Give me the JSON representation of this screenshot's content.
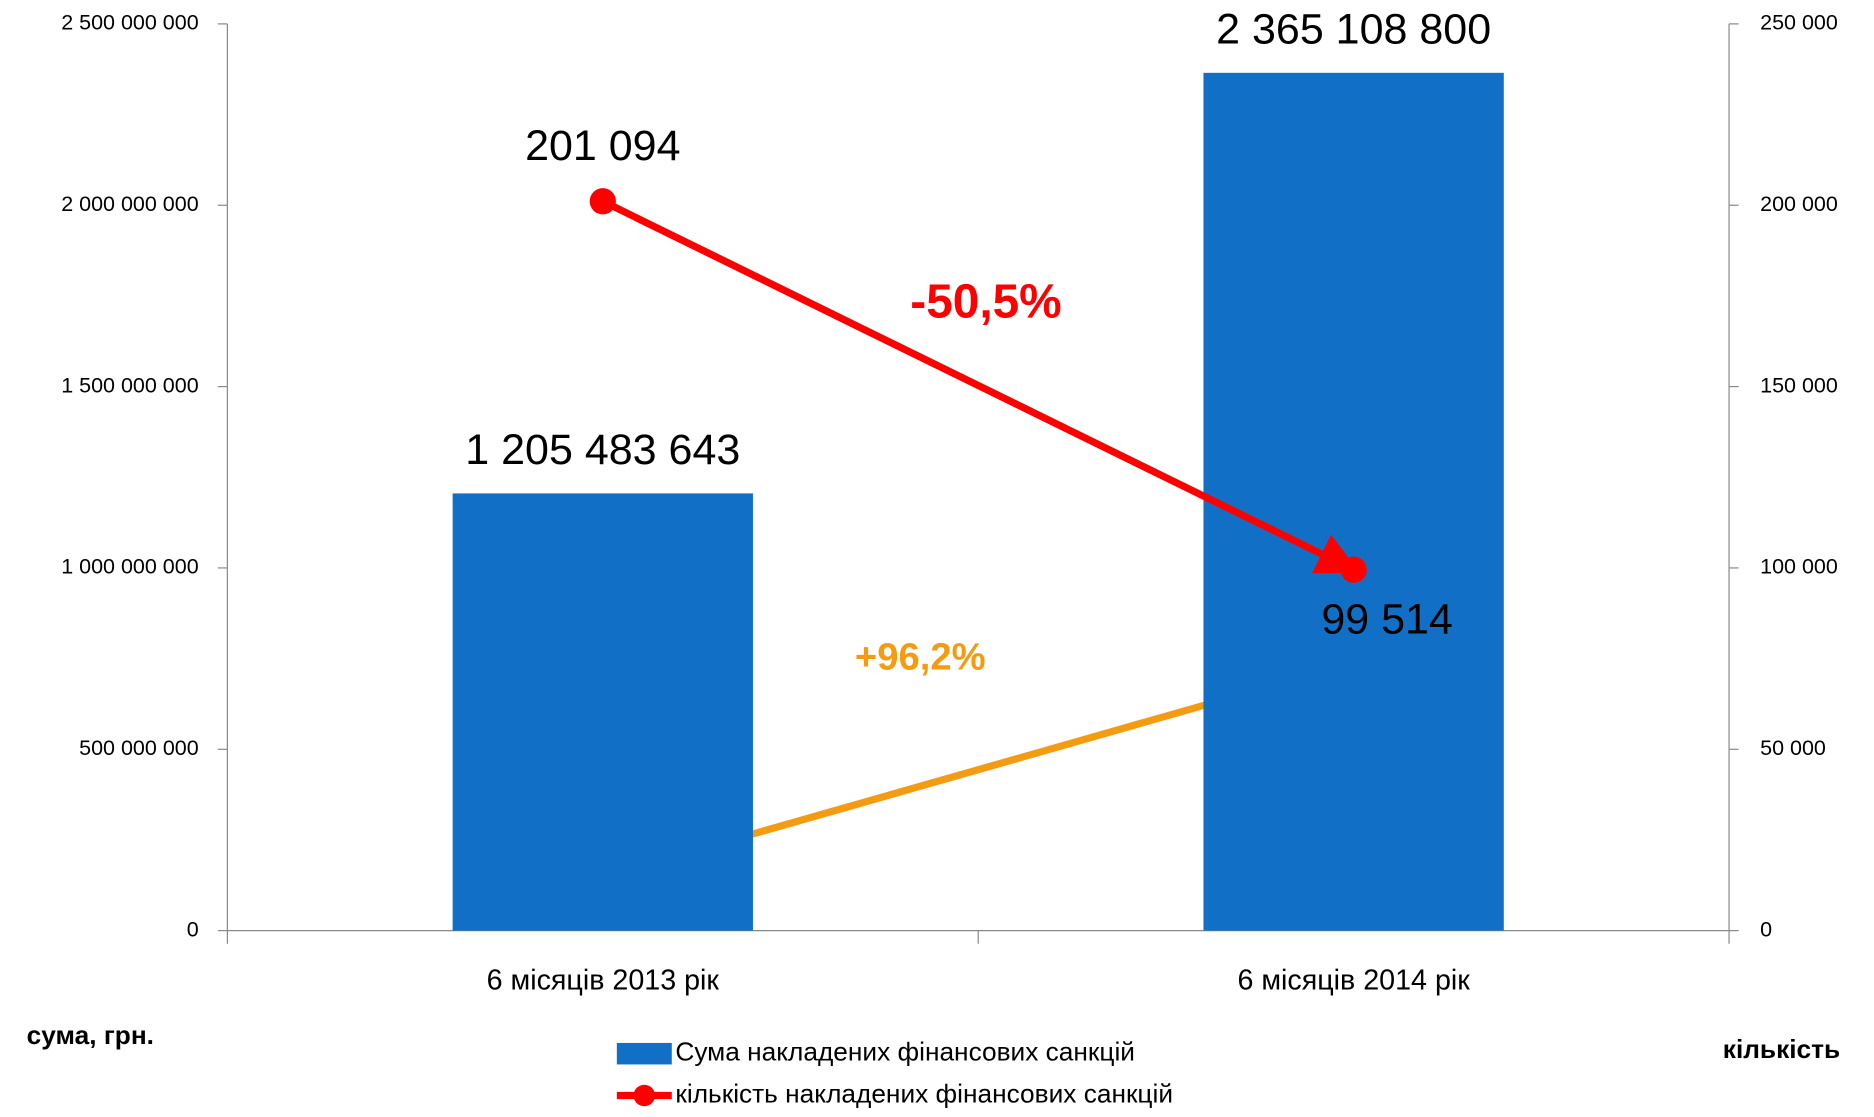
{
  "chart_data": {
    "type": "bar",
    "categories": [
      "6 місяців 2013 рік",
      "6 місяців 2014 рік"
    ],
    "series": [
      {
        "name": "Сума накладених фінансових санкцій",
        "color": "#1170c6",
        "values": [
          1205483643,
          2365108800
        ],
        "value_labels": [
          "1 205 483 643",
          "2 365 108 800"
        ]
      },
      {
        "name": "кількість накладених фінансових санкцій",
        "type": "line",
        "axis": "y2",
        "color": "#ff0000",
        "values": [
          201094,
          99514
        ],
        "value_labels": [
          "201 094",
          "99 514"
        ]
      }
    ],
    "ylabel": "сума, грн.",
    "y2label": "кількість",
    "ylim": [
      0,
      2500000000
    ],
    "yticks": [
      0,
      {
        "value": 500000000,
        "label": "500 000 000"
      },
      {
        "value": 1000000000,
        "label": "1 000 000 000"
      },
      {
        "value": 1500000000,
        "label": "1 500 000 000"
      },
      {
        "value": 2000000000,
        "label": "2 000 000 000"
      },
      {
        "value": 2500000000,
        "label": "2 500 000 000"
      }
    ],
    "y2lim": [
      0,
      250000
    ],
    "y2ticks": [
      0,
      {
        "value": 50000,
        "label": "50 000"
      },
      {
        "value": 100000,
        "label": "100 000"
      },
      {
        "value": 150000,
        "label": "150 000"
      },
      {
        "value": 200000,
        "label": "200 000"
      },
      {
        "value": 250000,
        "label": "250 000"
      }
    ],
    "annotations": [
      {
        "text": "-50,5%",
        "color": "#ff0000"
      },
      {
        "text": "+96,2%",
        "color": "#f59b12"
      }
    ],
    "legend": "bottom"
  }
}
